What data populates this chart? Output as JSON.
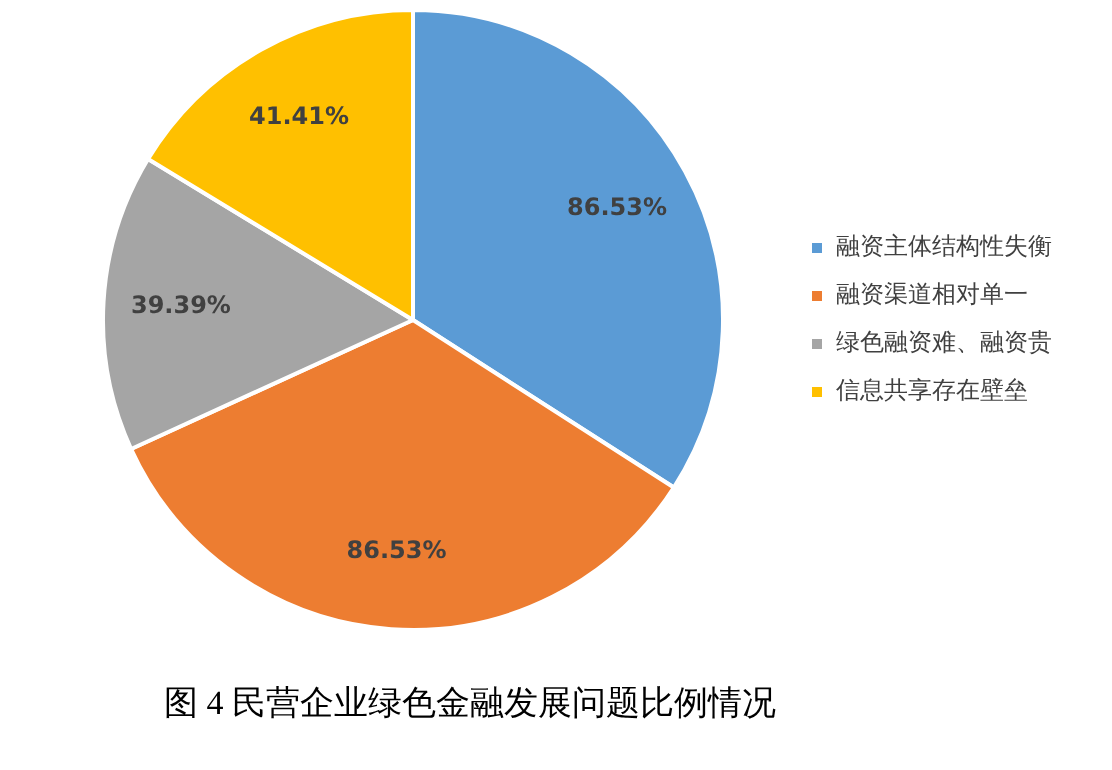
{
  "chart_data": {
    "type": "pie",
    "title": "图 4 民营企业绿色金融发展问题比例情况",
    "categories": [
      "融资主体结构性失衡",
      "融资渠道相对单一",
      "绿色融资难、融资贵",
      "信息共享存在壁垒"
    ],
    "values": [
      86.53,
      86.53,
      39.39,
      41.41
    ],
    "colors": [
      "#5b9bd5",
      "#ed7d31",
      "#a5a5a5",
      "#ffc000"
    ],
    "value_labels": [
      "86.53%",
      "86.53%",
      "39.39%",
      "41.41%"
    ],
    "legend": "right"
  }
}
